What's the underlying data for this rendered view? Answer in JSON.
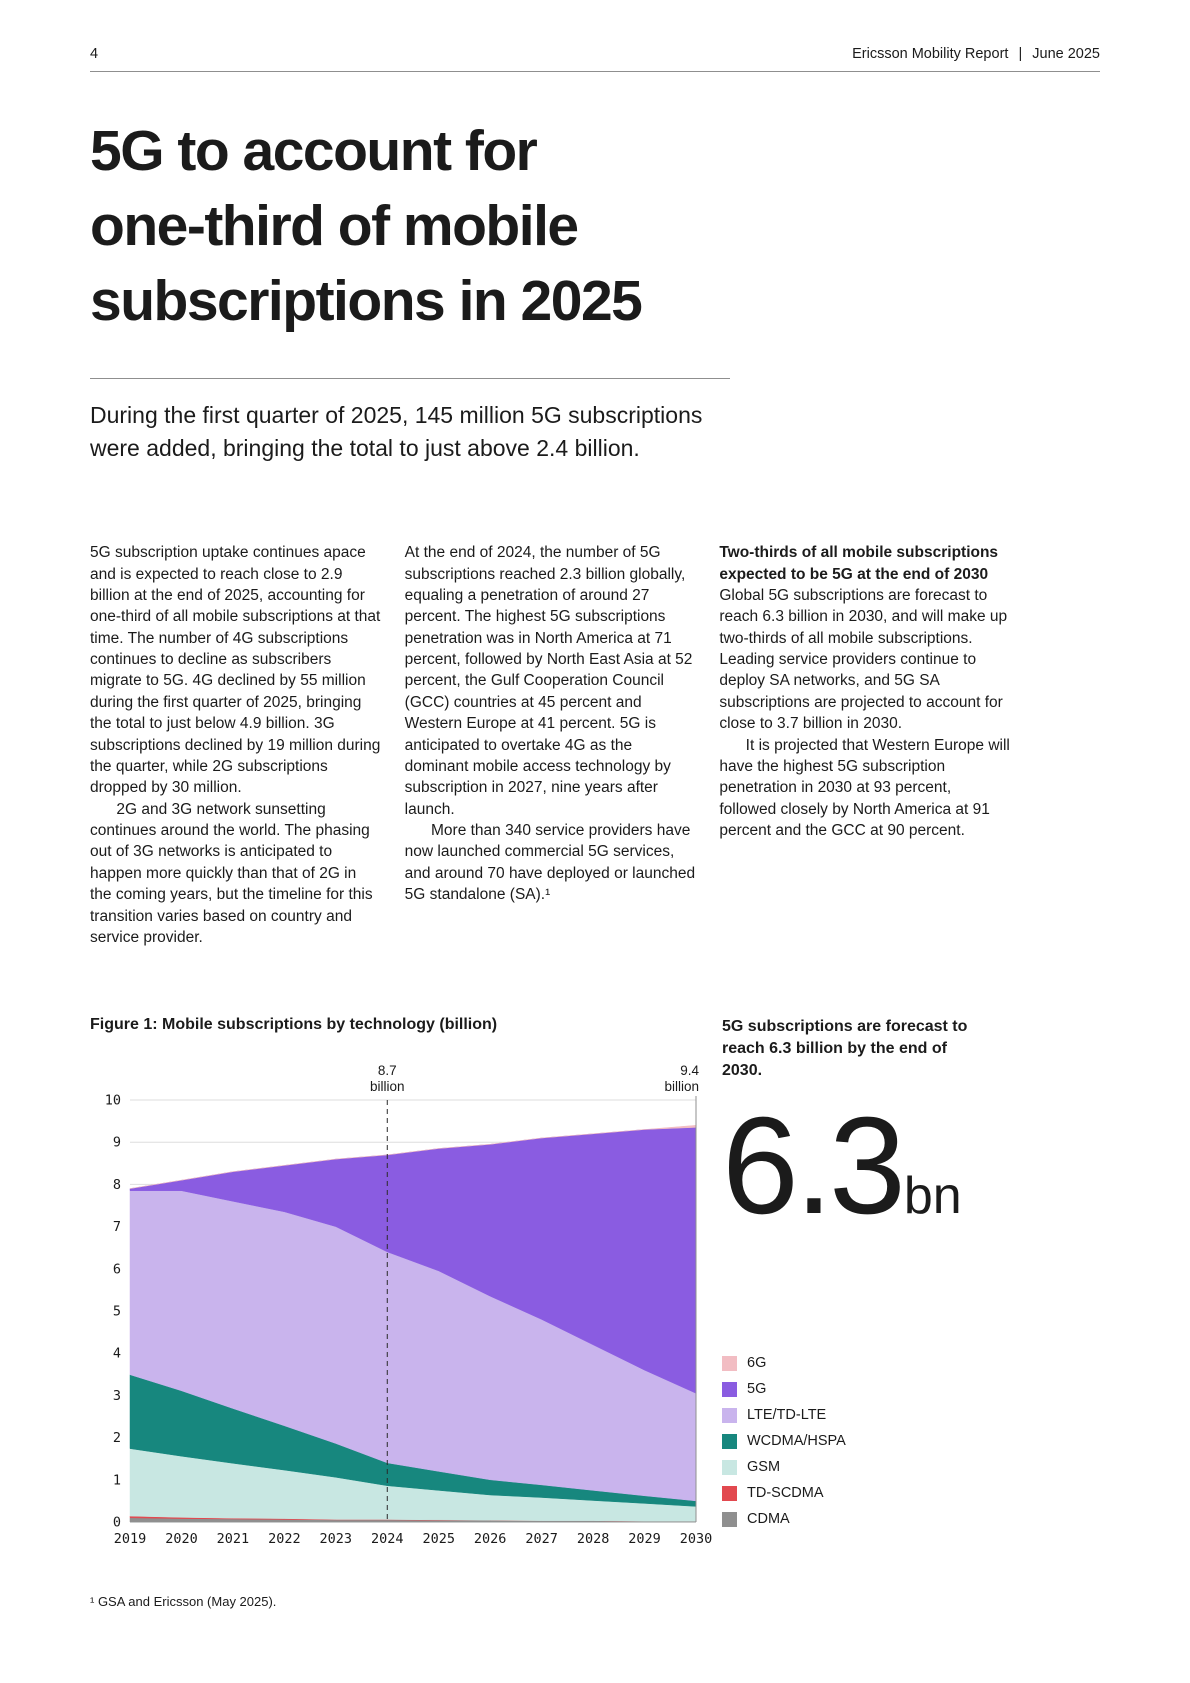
{
  "header": {
    "page_number": "4",
    "report": "Ericsson Mobility Report",
    "separator": "|",
    "date": "June 2025"
  },
  "hero": {
    "title_lines": [
      "5G to account for",
      "one-third of mobile",
      "subscriptions in 2025"
    ],
    "subtitle_lines": [
      "During the first quarter of 2025, 145 million 5G subscriptions",
      "were added, bringing the total to just above 2.4 billion."
    ]
  },
  "columns": [
    {
      "paragraphs": [
        "5G subscription uptake continues apace and is expected to reach close to 2.9 billion at the end of 2025, accounting for one-third of all mobile subscriptions at that time. The number of 4G subscriptions continues to decline as subscribers migrate to 5G. 4G declined by 55 million during the first quarter of 2025, bringing the total to just below 4.9 billion. 3G subscriptions declined by 19 million during the quarter, while 2G subscriptions dropped by 30 million.",
        "2G and 3G network sunsetting continues around the world. The phasing out of 3G networks is anticipated to happen more quickly than that of 2G in the coming years, but the timeline for this transition varies based on country and service provider."
      ]
    },
    {
      "paragraphs": [
        "At the end of 2024, the number of 5G subscriptions reached 2.3 billion globally, equaling a penetration of around 27 percent. The highest 5G subscriptions penetration was in North America at 71 percent, followed by North East Asia at 52 percent, the Gulf Cooperation Council (GCC) countries at 45 percent and Western Europe at 41 percent. 5G is anticipated to overtake 4G as the dominant mobile access technology by subscription in 2027, nine years after launch.",
        "More than 340 service providers have now launched commercial 5G services, and around 70 have deployed or launched 5G standalone (SA).¹"
      ]
    },
    {
      "heading": "Two-thirds of all mobile subscriptions expected to be 5G at the end of 2030",
      "paragraphs": [
        "Global 5G subscriptions are forecast to reach 6.3 billion in 2030, and will make up two-thirds of all mobile subscriptions. Leading service providers continue to deploy SA networks, and 5G SA subscriptions are projected to account for close to 3.7 billion in 2030.",
        "It is projected that Western Europe will have the highest 5G subscription penetration in 2030 at 93 percent, followed closely by North America at 91 percent and the GCC at 90 percent."
      ]
    }
  ],
  "figure": {
    "label": "Figure 1: Mobile subscriptions by technology (billion)"
  },
  "callout": {
    "text": "5G subscriptions are forecast to reach 6.3 billion by the end of 2030.",
    "big_value": "6.3",
    "big_unit": "bn"
  },
  "footnote": "¹ GSA and Ericsson (May 2025).",
  "chart_data": {
    "type": "area",
    "stacked": true,
    "title": "Figure 1: Mobile subscriptions by technology (billion)",
    "x": [
      2019,
      2020,
      2021,
      2022,
      2023,
      2024,
      2025,
      2026,
      2027,
      2028,
      2029,
      2030
    ],
    "ylim": [
      0,
      10
    ],
    "yticks": [
      0,
      1,
      2,
      3,
      4,
      5,
      6,
      7,
      8,
      9,
      10
    ],
    "series": [
      {
        "name": "CDMA",
        "color": "#8f8f8f",
        "values": [
          0.1,
          0.08,
          0.07,
          0.06,
          0.05,
          0.05,
          0.04,
          0.04,
          0.03,
          0.03,
          0.02,
          0.02
        ]
      },
      {
        "name": "TD-SCDMA",
        "color": "#e2494f",
        "values": [
          0.04,
          0.03,
          0.02,
          0.02,
          0.01,
          0.01,
          0.01,
          0.0,
          0.0,
          0.0,
          0.0,
          0.0
        ]
      },
      {
        "name": "GSM",
        "color": "#c8e7e2",
        "values": [
          1.6,
          1.45,
          1.3,
          1.15,
          1.0,
          0.8,
          0.7,
          0.6,
          0.55,
          0.48,
          0.42,
          0.35
        ]
      },
      {
        "name": "WCDMA/HSPA",
        "color": "#17877e",
        "values": [
          1.75,
          1.55,
          1.3,
          1.05,
          0.8,
          0.54,
          0.45,
          0.36,
          0.3,
          0.24,
          0.18,
          0.13
        ]
      },
      {
        "name": "LTE/TD-LTE",
        "color": "#c9b4ed",
        "values": [
          4.36,
          4.74,
          4.91,
          5.07,
          5.14,
          5.0,
          4.75,
          4.35,
          3.92,
          3.45,
          2.98,
          2.55
        ]
      },
      {
        "name": "5G",
        "color": "#8a5ce1",
        "values": [
          0.05,
          0.25,
          0.7,
          1.1,
          1.6,
          2.3,
          2.9,
          3.6,
          4.3,
          5.0,
          5.7,
          6.3
        ]
      },
      {
        "name": "6G",
        "color": "#f2bdc3",
        "values": [
          0.0,
          0.0,
          0.0,
          0.0,
          0.0,
          0.0,
          0.0,
          0.0,
          0.0,
          0.0,
          0.0,
          0.05
        ]
      }
    ],
    "legend_order": [
      "6G",
      "5G",
      "LTE/TD-LTE",
      "WCDMA/HSPA",
      "GSM",
      "TD-SCDMA",
      "CDMA"
    ],
    "legend_position": "right",
    "grid": "horizontal",
    "annotations": [
      {
        "x": 2024,
        "label_value": "8.7",
        "label_unit": "billion",
        "line": "dashed"
      },
      {
        "x": 2030,
        "label_value": "9.4",
        "label_unit": "billion",
        "line": "solid"
      }
    ]
  }
}
